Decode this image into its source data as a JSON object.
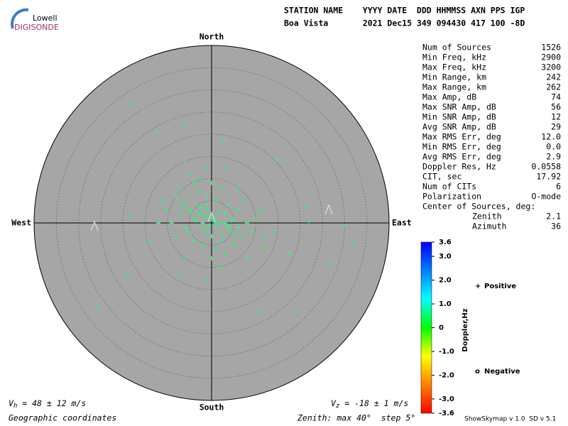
{
  "chart_data": {
    "type": "skymap",
    "logo": {
      "top": "Lowell",
      "bottom": "DIGISONDE"
    },
    "header": [
      "STATION NAME    YYYY DATE  DDD HHMMSS AXN PPS IGP",
      "Boa Vista       2021 Dec15 349 094430 417 100 -8D"
    ],
    "directions": {
      "north": "North",
      "south": "South",
      "east": "East",
      "west": "West"
    },
    "rlim": [
      0,
      40
    ],
    "rticks": [
      5,
      10,
      15,
      20,
      25,
      30,
      35
    ],
    "series": [
      {
        "name": "Positive",
        "marker": "+",
        "color": "#0000cc",
        "x": [
          -2,
          -1,
          0,
          1,
          2,
          -3,
          -4,
          -5,
          3,
          4,
          -1,
          0,
          2,
          -2,
          -6,
          -7,
          -3,
          -1,
          1,
          2,
          -4,
          -8,
          -9,
          5,
          6,
          7,
          4,
          -5,
          -2,
          1,
          3,
          -6,
          -10,
          8,
          9,
          5,
          -3,
          0,
          -7,
          -11,
          10,
          6,
          -4,
          0,
          2,
          -1,
          -5,
          3,
          12,
          -12,
          7,
          -8,
          0.5,
          -1.5,
          1.5,
          -2.5,
          -3.5,
          3.5,
          -0.5,
          2.5,
          -4.5,
          4.5,
          -6.5,
          5.5,
          -1,
          0,
          1,
          -2,
          3,
          -3,
          14,
          11,
          -14,
          8,
          -6,
          6,
          -18.1,
          -25.6,
          -18.9,
          31.8,
          29.9,
          26.7,
          21.9,
          21.4,
          19.4,
          10.9,
          -1.3,
          -6.9,
          -6.0,
          -12.2,
          2.7,
          -18.4,
          14.7,
          17.6
        ],
        "y": [
          2,
          3,
          1,
          -1,
          0,
          4,
          1,
          3,
          2,
          -2,
          -2,
          -3,
          -4,
          -1,
          5,
          2,
          7,
          6,
          5,
          8,
          9,
          6,
          0,
          1,
          -1,
          -3,
          4,
          -2,
          -5,
          -6,
          -7,
          -1,
          3,
          0,
          -2,
          -5,
          10,
          9,
          8,
          5,
          1,
          3,
          -4,
          -8,
          -10,
          12,
          11,
          12,
          -3,
          0,
          5,
          -3,
          0.5,
          1.5,
          2.5,
          3.5,
          0.5,
          -0.5,
          -0.5,
          -2.5,
          2.5,
          0.5,
          3.5,
          -2.5,
          4,
          2,
          0,
          0,
          0,
          2,
          -2,
          3,
          -4,
          -8,
          -8,
          8,
          26.7,
          -19.0,
          -11.8,
          -5.0,
          -0.6,
          -9.0,
          0.3,
          3.5,
          -19.7,
          -19.7,
          -12.5,
          -11.8,
          22.2,
          20.3,
          18.6,
          1.4,
          14.2,
          -7.0
        ],
        "doppler": [
          0.6,
          0.8,
          0.5,
          0.9,
          0.7,
          0.6,
          0.8,
          0.5,
          0.9,
          0.6,
          0.8,
          0.7,
          0.9,
          0.5,
          0.7,
          0.6,
          0.8,
          0.9,
          0.6,
          0.7,
          0.5,
          0.8,
          0.6,
          0.7,
          0.9,
          0.5,
          0.8,
          0.6,
          0.7,
          0.8,
          0.6,
          0.9,
          0.7,
          0.6,
          0.8,
          0.5,
          0.7,
          0.9,
          0.6,
          0.8,
          0.6,
          0.9,
          0.7,
          0.6,
          0.8,
          0.7,
          0.9,
          0.6,
          0.8,
          0.7,
          0.6,
          0.8,
          1.0,
          0.4,
          0.6,
          0.9,
          0.7,
          0.8,
          0.6,
          0.7,
          0.5,
          0.9,
          0.8,
          0.6,
          0.7,
          0.8,
          0.6,
          0.9,
          0.7,
          0.8,
          0.6,
          0.7,
          0.8,
          0.6,
          0.7,
          0.9,
          0.6,
          0.7,
          0.8,
          0.6,
          0.7,
          0.8,
          0.6,
          0.9,
          0.7,
          0.8,
          0.6,
          0.7,
          0.8,
          0.6,
          0.9,
          0.7,
          0.8,
          0.6
        ]
      },
      {
        "name": "Negative",
        "marker": "o",
        "color": "#cc0000",
        "x": [
          11.4,
          4.0
        ],
        "y": [
          -5.8,
          -1.0
        ],
        "doppler": [
          -0.1,
          -0.2
        ]
      }
    ],
    "stats": [
      [
        "Num of Sources",
        "1526"
      ],
      [
        "Min Freq, kHz",
        "2900"
      ],
      [
        "Max Freq, kHz",
        "3200"
      ],
      [
        "Min Range, km",
        "242"
      ],
      [
        "Max Range, km",
        "262"
      ],
      [
        "Max Amp, dB",
        "74"
      ],
      [
        "Max SNR Amp, dB",
        "56"
      ],
      [
        "Min SNR Amp, dB",
        "12"
      ],
      [
        "Avg SNR Amp, dB",
        "29"
      ],
      [
        "Max RMS Err, deg",
        "12.0"
      ],
      [
        "Min RMS Err, deg",
        "0.0"
      ],
      [
        "Avg RMS Err, deg",
        "2.9"
      ],
      [
        "Doppler Res, Hz",
        "0.0558"
      ],
      [
        "CIT, sec",
        "17.92"
      ],
      [
        "Num of CITs",
        "6"
      ],
      [
        "Polarization",
        "O-mode"
      ],
      [
        "Center of Sources, deg:",
        ""
      ],
      [
        "Zenith",
        "2.1"
      ],
      [
        "Azimuth",
        "36"
      ]
    ],
    "colorbar": {
      "label": "Doppler,Hz",
      "lim": [
        -3.6,
        3.6
      ],
      "ticks": [
        3.6,
        {
          "value": 3,
          "label": "3.0"
        },
        {
          "value": 2,
          "label": "2.0"
        },
        {
          "value": 1,
          "label": "1.0"
        },
        0,
        {
          "value": -1,
          "label": "-1.0"
        },
        {
          "value": -2,
          "label": "-2.0"
        },
        {
          "value": -3,
          "label": "-3.0"
        },
        -3.6
      ]
    },
    "vh": {
      "symbol": "V",
      "subscript": "h",
      "text": " = 48 ± 12 m/s"
    },
    "vz": {
      "symbol": "V",
      "subscript": "z",
      "text": " = -18 ± 1 m/s"
    },
    "footer_left": "Geographic coordinates",
    "footer_mid": "Zenith: max 40°  step 5°",
    "footer_right": "ShowSkymap v 1.0  SD v 5.1"
  }
}
